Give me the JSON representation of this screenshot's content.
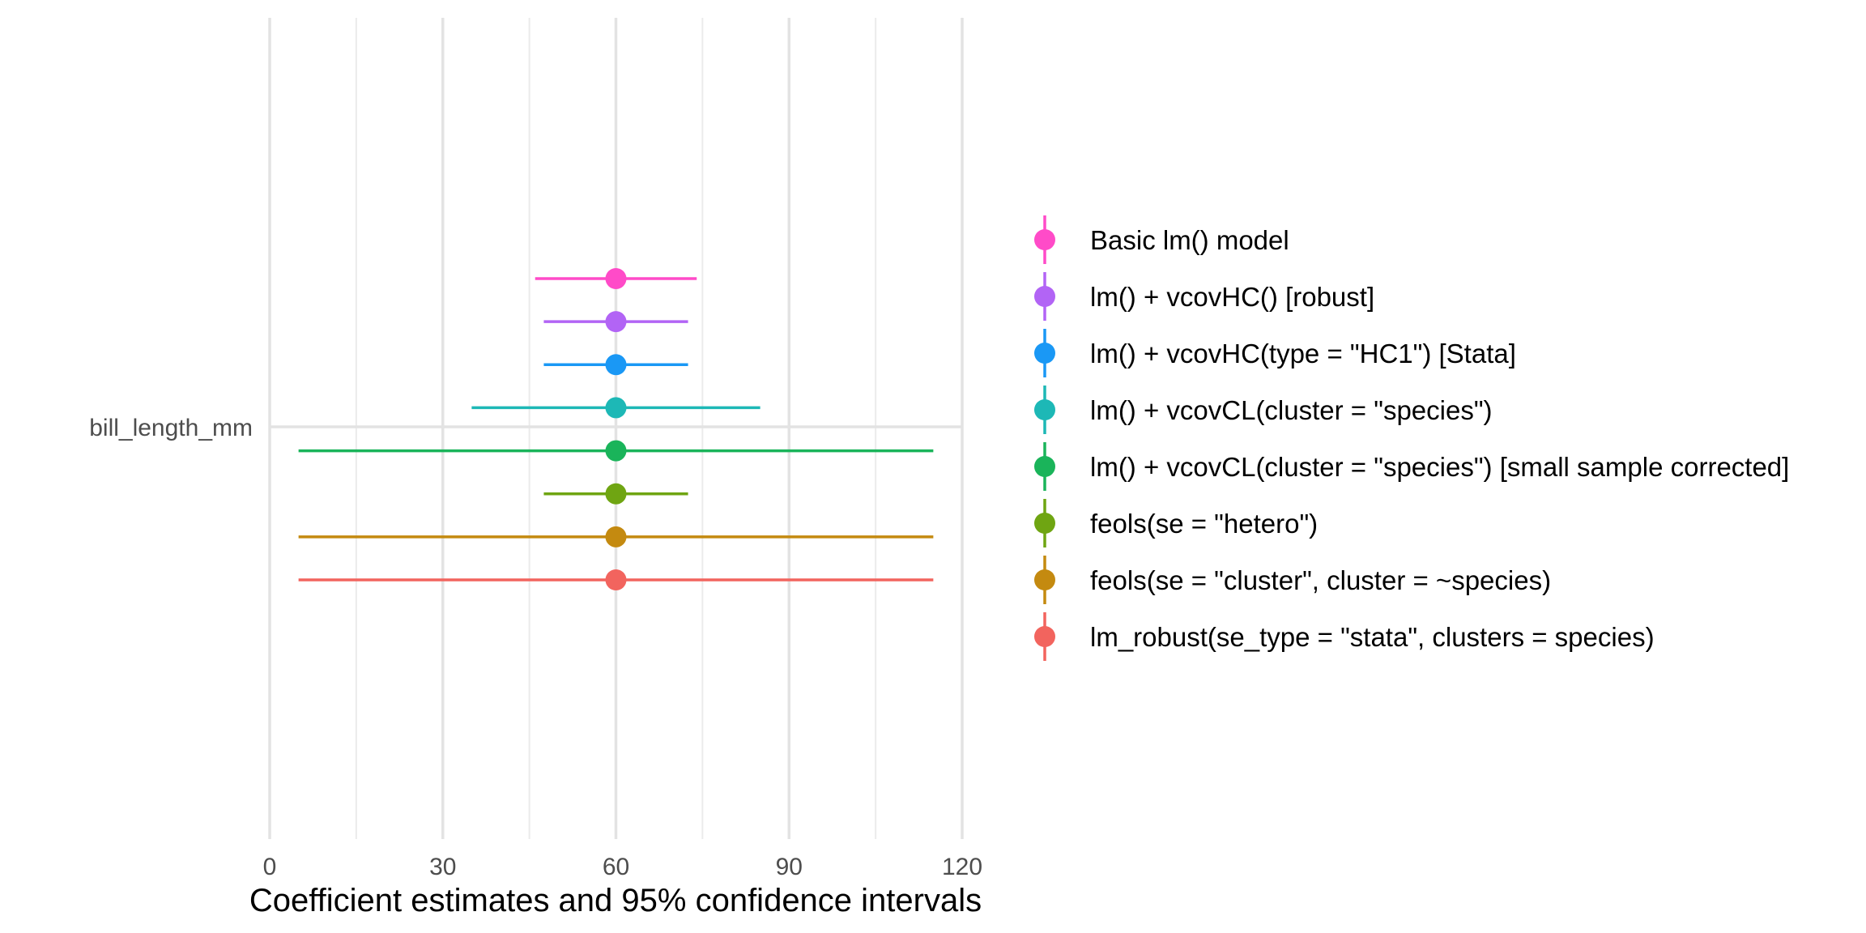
{
  "chart_data": {
    "type": "coefficient_plot",
    "xlabel": "Coefficient estimates and 95% confidence intervals",
    "ylabel": "",
    "xlim": [
      0,
      120
    ],
    "xticks": [
      "0",
      "30",
      "60",
      "90",
      "120"
    ],
    "terms": [
      "bill_length_mm"
    ],
    "grid": true,
    "legend_position": "right",
    "series": [
      {
        "name": "Basic lm() model",
        "term": "bill_length_mm",
        "estimate": 60,
        "conf_low": 46,
        "conf_high": 74,
        "color": "#FF4BC8"
      },
      {
        "name": "lm() + vcovHC() [robust]",
        "term": "bill_length_mm",
        "estimate": 60,
        "conf_low": 47.5,
        "conf_high": 72.5,
        "color": "#B264F5"
      },
      {
        "name": "lm() + vcovHC(type = \"HC1\") [Stata]",
        "term": "bill_length_mm",
        "estimate": 60,
        "conf_low": 47.5,
        "conf_high": 72.5,
        "color": "#1A98F5"
      },
      {
        "name": "lm() + vcovCL(cluster = \"species\")",
        "term": "bill_length_mm",
        "estimate": 60,
        "conf_low": 35,
        "conf_high": 85,
        "color": "#1DB8B6"
      },
      {
        "name": "lm() + vcovCL(cluster = \"species\") [small sample corrected]",
        "term": "bill_length_mm",
        "estimate": 60,
        "conf_low": 5,
        "conf_high": 115,
        "color": "#1AB45A"
      },
      {
        "name": "feols(se = \"hetero\")",
        "term": "bill_length_mm",
        "estimate": 60,
        "conf_low": 47.5,
        "conf_high": 72.5,
        "color": "#6FA512"
      },
      {
        "name": "feols(se = \"cluster\", cluster = ~species)",
        "term": "bill_length_mm",
        "estimate": 60,
        "conf_low": 5,
        "conf_high": 115,
        "color": "#C48A10"
      },
      {
        "name": "lm_robust(se_type = \"stata\", clusters = species)",
        "term": "bill_length_mm",
        "estimate": 60,
        "conf_low": 5,
        "conf_high": 115,
        "color": "#F2645E"
      }
    ]
  }
}
